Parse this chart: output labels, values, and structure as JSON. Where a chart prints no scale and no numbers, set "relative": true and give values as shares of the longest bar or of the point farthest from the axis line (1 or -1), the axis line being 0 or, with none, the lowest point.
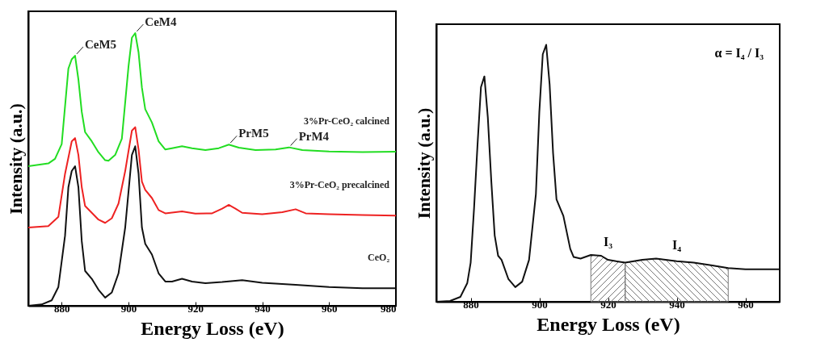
{
  "chart_data": [
    {
      "type": "line",
      "relative": true,
      "xlim": [
        870,
        980
      ],
      "xticks": [
        880,
        900,
        920,
        940,
        960,
        980
      ],
      "xlabel": "Energy Loss (eV)",
      "ylabel": "Intensity (a.u.)",
      "tick_labels": "x",
      "series": [
        {
          "name": "3%Pr-CeO₂ calcined",
          "color": "#22dd22",
          "x": [
            870,
            876,
            878,
            880,
            882,
            883,
            884,
            885,
            886,
            887,
            889,
            891,
            893,
            894,
            896,
            898,
            900,
            901,
            902,
            903,
            904,
            905,
            907,
            909,
            911,
            913,
            916,
            919,
            923,
            927,
            930,
            933,
            938,
            944,
            948,
            952,
            960,
            970,
            980
          ],
          "values": [
            0.512,
            0.522,
            0.539,
            0.593,
            0.87,
            0.904,
            0.917,
            0.83,
            0.711,
            0.637,
            0.603,
            0.563,
            0.534,
            0.532,
            0.553,
            0.613,
            0.879,
            0.983,
            1.0,
            0.929,
            0.8,
            0.721,
            0.672,
            0.603,
            0.573,
            0.578,
            0.585,
            0.578,
            0.571,
            0.578,
            0.591,
            0.58,
            0.571,
            0.573,
            0.581,
            0.571,
            0.566,
            0.564,
            0.565
          ]
        },
        {
          "name": "3%Pr-CeO₂ precalcined",
          "color": "#ee2222",
          "x": [
            870,
            876,
            879,
            881,
            883,
            884,
            885,
            886,
            887,
            889,
            891,
            893,
            895,
            897,
            899,
            901,
            902,
            903,
            904,
            905,
            907,
            909,
            911,
            916,
            920,
            925,
            928,
            930,
            932,
            934,
            940,
            946,
            950,
            953,
            960,
            970,
            980
          ],
          "values": [
            0.287,
            0.292,
            0.326,
            0.484,
            0.603,
            0.615,
            0.553,
            0.435,
            0.366,
            0.341,
            0.316,
            0.304,
            0.321,
            0.375,
            0.494,
            0.642,
            0.655,
            0.573,
            0.455,
            0.425,
            0.395,
            0.351,
            0.339,
            0.346,
            0.338,
            0.339,
            0.356,
            0.37,
            0.356,
            0.341,
            0.336,
            0.343,
            0.354,
            0.339,
            0.336,
            0.333,
            0.331
          ]
        },
        {
          "name": "CeO₂",
          "color": "#111111",
          "x": [
            870,
            874,
            877,
            879,
            881,
            882,
            883,
            884,
            885,
            886,
            887,
            889,
            891,
            893,
            895,
            897,
            899,
            901,
            902,
            903,
            904,
            905,
            907,
            909,
            911,
            913,
            916,
            919,
            923,
            928,
            934,
            940,
            950,
            960,
            970,
            980
          ],
          "values": [
            0,
            0.005,
            0.02,
            0.069,
            0.257,
            0.435,
            0.494,
            0.512,
            0.435,
            0.237,
            0.128,
            0.099,
            0.059,
            0.03,
            0.049,
            0.119,
            0.287,
            0.553,
            0.585,
            0.484,
            0.287,
            0.227,
            0.188,
            0.119,
            0.089,
            0.089,
            0.099,
            0.089,
            0.083,
            0.087,
            0.094,
            0.084,
            0.077,
            0.069,
            0.064,
            0.064
          ]
        }
      ],
      "annotations": [
        {
          "text": "CeM5",
          "x": 884,
          "y": 0.917
        },
        {
          "text": "CeM4",
          "x": 902,
          "y": 1.0
        },
        {
          "text": "PrM5",
          "x": 930,
          "y": 0.591
        },
        {
          "text": "PrM4",
          "x": 948,
          "y": 0.581
        }
      ]
    },
    {
      "type": "line",
      "relative": true,
      "xlim": [
        870,
        970
      ],
      "xticks": [
        880,
        900,
        920,
        940,
        960
      ],
      "xlabel": "Energy Loss (eV)",
      "ylabel": "Intensity (a.u.)",
      "tick_labels": "x",
      "series": [
        {
          "color": "#111111",
          "x": [
            870,
            874,
            877,
            879,
            880,
            881,
            882,
            883,
            884,
            885,
            886,
            887,
            888,
            889,
            891,
            893,
            895,
            897,
            899,
            900,
            901,
            902,
            903,
            904,
            905,
            907,
            909,
            910,
            912,
            915,
            918,
            920,
            925,
            930,
            934,
            940,
            945,
            950,
            955,
            960,
            965,
            970
          ],
          "values": [
            0,
            0.003,
            0.019,
            0.072,
            0.152,
            0.366,
            0.611,
            0.835,
            0.877,
            0.717,
            0.472,
            0.258,
            0.179,
            0.163,
            0.088,
            0.057,
            0.078,
            0.163,
            0.419,
            0.739,
            0.963,
            1.0,
            0.845,
            0.579,
            0.398,
            0.334,
            0.206,
            0.174,
            0.168,
            0.182,
            0.179,
            0.163,
            0.152,
            0.163,
            0.168,
            0.158,
            0.152,
            0.142,
            0.131,
            0.126,
            0.126,
            0.126
          ]
        }
      ],
      "bands": [
        {
          "axis": "x",
          "from": 915,
          "to": 925,
          "label": "I₃"
        },
        {
          "axis": "x",
          "from": 925,
          "to": 955,
          "label": "I₄"
        }
      ],
      "annotations": [
        "α = I₄ / I₃"
      ]
    }
  ]
}
